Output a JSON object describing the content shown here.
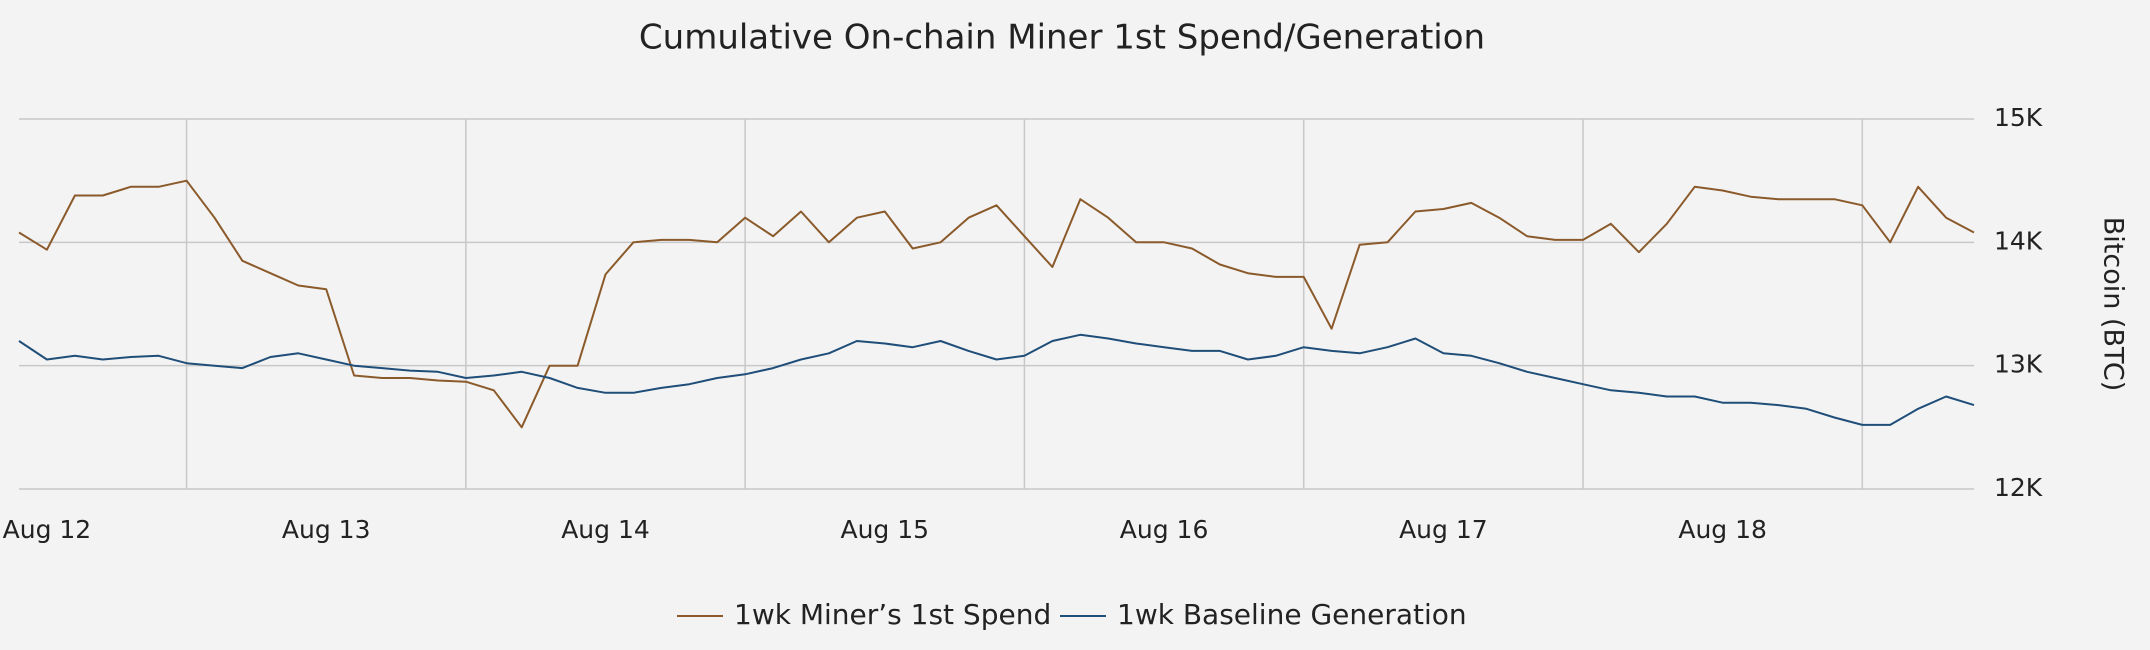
{
  "chart_data": {
    "type": "line",
    "title": "Cumulative On-chain Miner 1st Spend/Generation",
    "y_axis_label": "Bitcoin (BTC)",
    "x": [
      -0.1,
      0,
      0.1,
      0.2,
      0.3,
      0.4,
      0.5,
      0.6,
      0.7,
      0.8,
      0.9,
      1,
      1.1,
      1.2,
      1.3,
      1.4,
      1.5,
      1.6,
      1.7,
      1.8,
      1.9,
      2,
      2.1,
      2.2,
      2.3,
      2.4,
      2.5,
      2.6,
      2.7,
      2.8,
      2.9,
      3,
      3.1,
      3.2,
      3.3,
      3.4,
      3.5,
      3.6,
      3.7,
      3.8,
      3.9,
      4,
      4.1,
      4.2,
      4.3,
      4.4,
      4.5,
      4.6,
      4.7,
      4.8,
      4.9,
      5,
      5.1,
      5.2,
      5.3,
      5.4,
      5.5,
      5.6,
      5.7,
      5.8,
      5.9,
      6,
      6.1,
      6.2,
      6.3,
      6.4,
      6.5,
      6.6,
      6.7,
      6.8,
      6.9
    ],
    "series": [
      {
        "name": "1wk Miner’s 1st Spend",
        "color": "#8b5a2b",
        "values": [
          14080,
          13940,
          14380,
          14380,
          14450,
          14450,
          14500,
          14200,
          13850,
          13750,
          13650,
          13620,
          12920,
          12900,
          12900,
          12880,
          12870,
          12800,
          12500,
          13000,
          13000,
          13740,
          14000,
          14020,
          14020,
          14000,
          14200,
          14050,
          14250,
          14000,
          14200,
          14250,
          13950,
          14000,
          14200,
          14300,
          14050,
          13800,
          14350,
          14200,
          14000,
          14000,
          13950,
          13820,
          13750,
          13720,
          13720,
          13300,
          13980,
          14000,
          14250,
          14270,
          14320,
          14200,
          14050,
          14020,
          14020,
          14150,
          13920,
          14150,
          14450,
          14420,
          14370,
          14350,
          14350,
          14350,
          14300,
          14000,
          14450,
          14200,
          14080
        ]
      },
      {
        "name": "1wk Baseline Generation",
        "color": "#1f4e79",
        "values": [
          13200,
          13050,
          13080,
          13050,
          13070,
          13080,
          13020,
          13000,
          12980,
          13070,
          13100,
          13050,
          13000,
          12980,
          12960,
          12950,
          12900,
          12920,
          12950,
          12900,
          12820,
          12780,
          12780,
          12820,
          12850,
          12900,
          12930,
          12980,
          13050,
          13100,
          13200,
          13180,
          13150,
          13200,
          13120,
          13050,
          13080,
          13200,
          13250,
          13220,
          13180,
          13150,
          13120,
          13120,
          13050,
          13080,
          13150,
          13120,
          13100,
          13150,
          13220,
          13100,
          13080,
          13020,
          12950,
          12900,
          12850,
          12800,
          12780,
          12750,
          12750,
          12700,
          12700,
          12680,
          12650,
          12580,
          12520,
          12520,
          12650,
          12750,
          12680
        ]
      }
    ],
    "xlim": [
      -0.1,
      6.9
    ],
    "xticks": [
      {
        "value": 0,
        "label": "Aug 12"
      },
      {
        "value": 1,
        "label": "Aug 13"
      },
      {
        "value": 2,
        "label": "Aug 14"
      },
      {
        "value": 3,
        "label": "Aug 15"
      },
      {
        "value": 4,
        "label": "Aug 16"
      },
      {
        "value": 5,
        "label": "Aug 17"
      },
      {
        "value": 6,
        "label": "Aug 18"
      }
    ],
    "x_gridlines": [
      0.5,
      1.5,
      2.5,
      3.5,
      4.5,
      5.5,
      6.5
    ],
    "ylim": [
      12000,
      15000
    ],
    "yticks": [
      {
        "value": 12000,
        "label": "12K"
      },
      {
        "value": 13000,
        "label": "13K"
      },
      {
        "value": 14000,
        "label": "14K"
      },
      {
        "value": 15000,
        "label": "15K"
      }
    ],
    "y_axis_side": "right",
    "grid": true,
    "legend": "bottom"
  }
}
